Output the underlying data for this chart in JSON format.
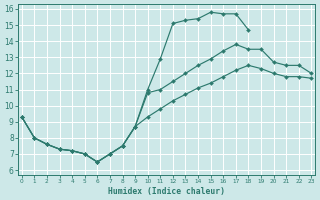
{
  "bg_color": "#cde8e8",
  "grid_color": "#b8d4d4",
  "line_color": "#2d7a6e",
  "xlabel": "Humidex (Indice chaleur)",
  "xlim": [
    -0.3,
    23.3
  ],
  "ylim": [
    5.7,
    16.3
  ],
  "xticks": [
    0,
    1,
    2,
    3,
    4,
    5,
    6,
    7,
    8,
    9,
    10,
    11,
    12,
    13,
    14,
    15,
    16,
    17,
    18,
    19,
    20,
    21,
    22,
    23
  ],
  "yticks": [
    6,
    7,
    8,
    9,
    10,
    11,
    12,
    13,
    14,
    15,
    16
  ],
  "line1_x": [
    0,
    1,
    2,
    3,
    4,
    5,
    6,
    7,
    8,
    9,
    10,
    11,
    12,
    13,
    14,
    15,
    16,
    17,
    18
  ],
  "line1_y": [
    9.3,
    8.0,
    7.6,
    7.3,
    7.2,
    7.0,
    6.5,
    7.0,
    7.5,
    8.7,
    11.0,
    12.9,
    15.1,
    15.3,
    15.4,
    15.8,
    15.7,
    15.7,
    14.7
  ],
  "line2_x": [
    0,
    1,
    2,
    3,
    4,
    5,
    6,
    7,
    8,
    9,
    10,
    11,
    12,
    13,
    14,
    15,
    16,
    17,
    18,
    19,
    20,
    21,
    22,
    23
  ],
  "line2_y": [
    9.3,
    8.0,
    7.6,
    7.3,
    7.2,
    7.0,
    6.5,
    7.0,
    7.5,
    8.7,
    10.8,
    11.0,
    11.5,
    12.0,
    12.5,
    12.9,
    13.4,
    13.8,
    13.5,
    13.5,
    12.7,
    12.5,
    12.5,
    12.0
  ],
  "line3_x": [
    0,
    1,
    2,
    3,
    4,
    5,
    6,
    7,
    8,
    9,
    10,
    11,
    12,
    13,
    14,
    15,
    16,
    17,
    18,
    19,
    20,
    21,
    22,
    23
  ],
  "line3_y": [
    9.3,
    8.0,
    7.6,
    7.3,
    7.2,
    7.0,
    6.5,
    7.0,
    7.5,
    8.7,
    9.3,
    9.8,
    10.3,
    10.7,
    11.1,
    11.4,
    11.8,
    12.2,
    12.5,
    12.3,
    12.0,
    11.8,
    11.8,
    11.7
  ]
}
